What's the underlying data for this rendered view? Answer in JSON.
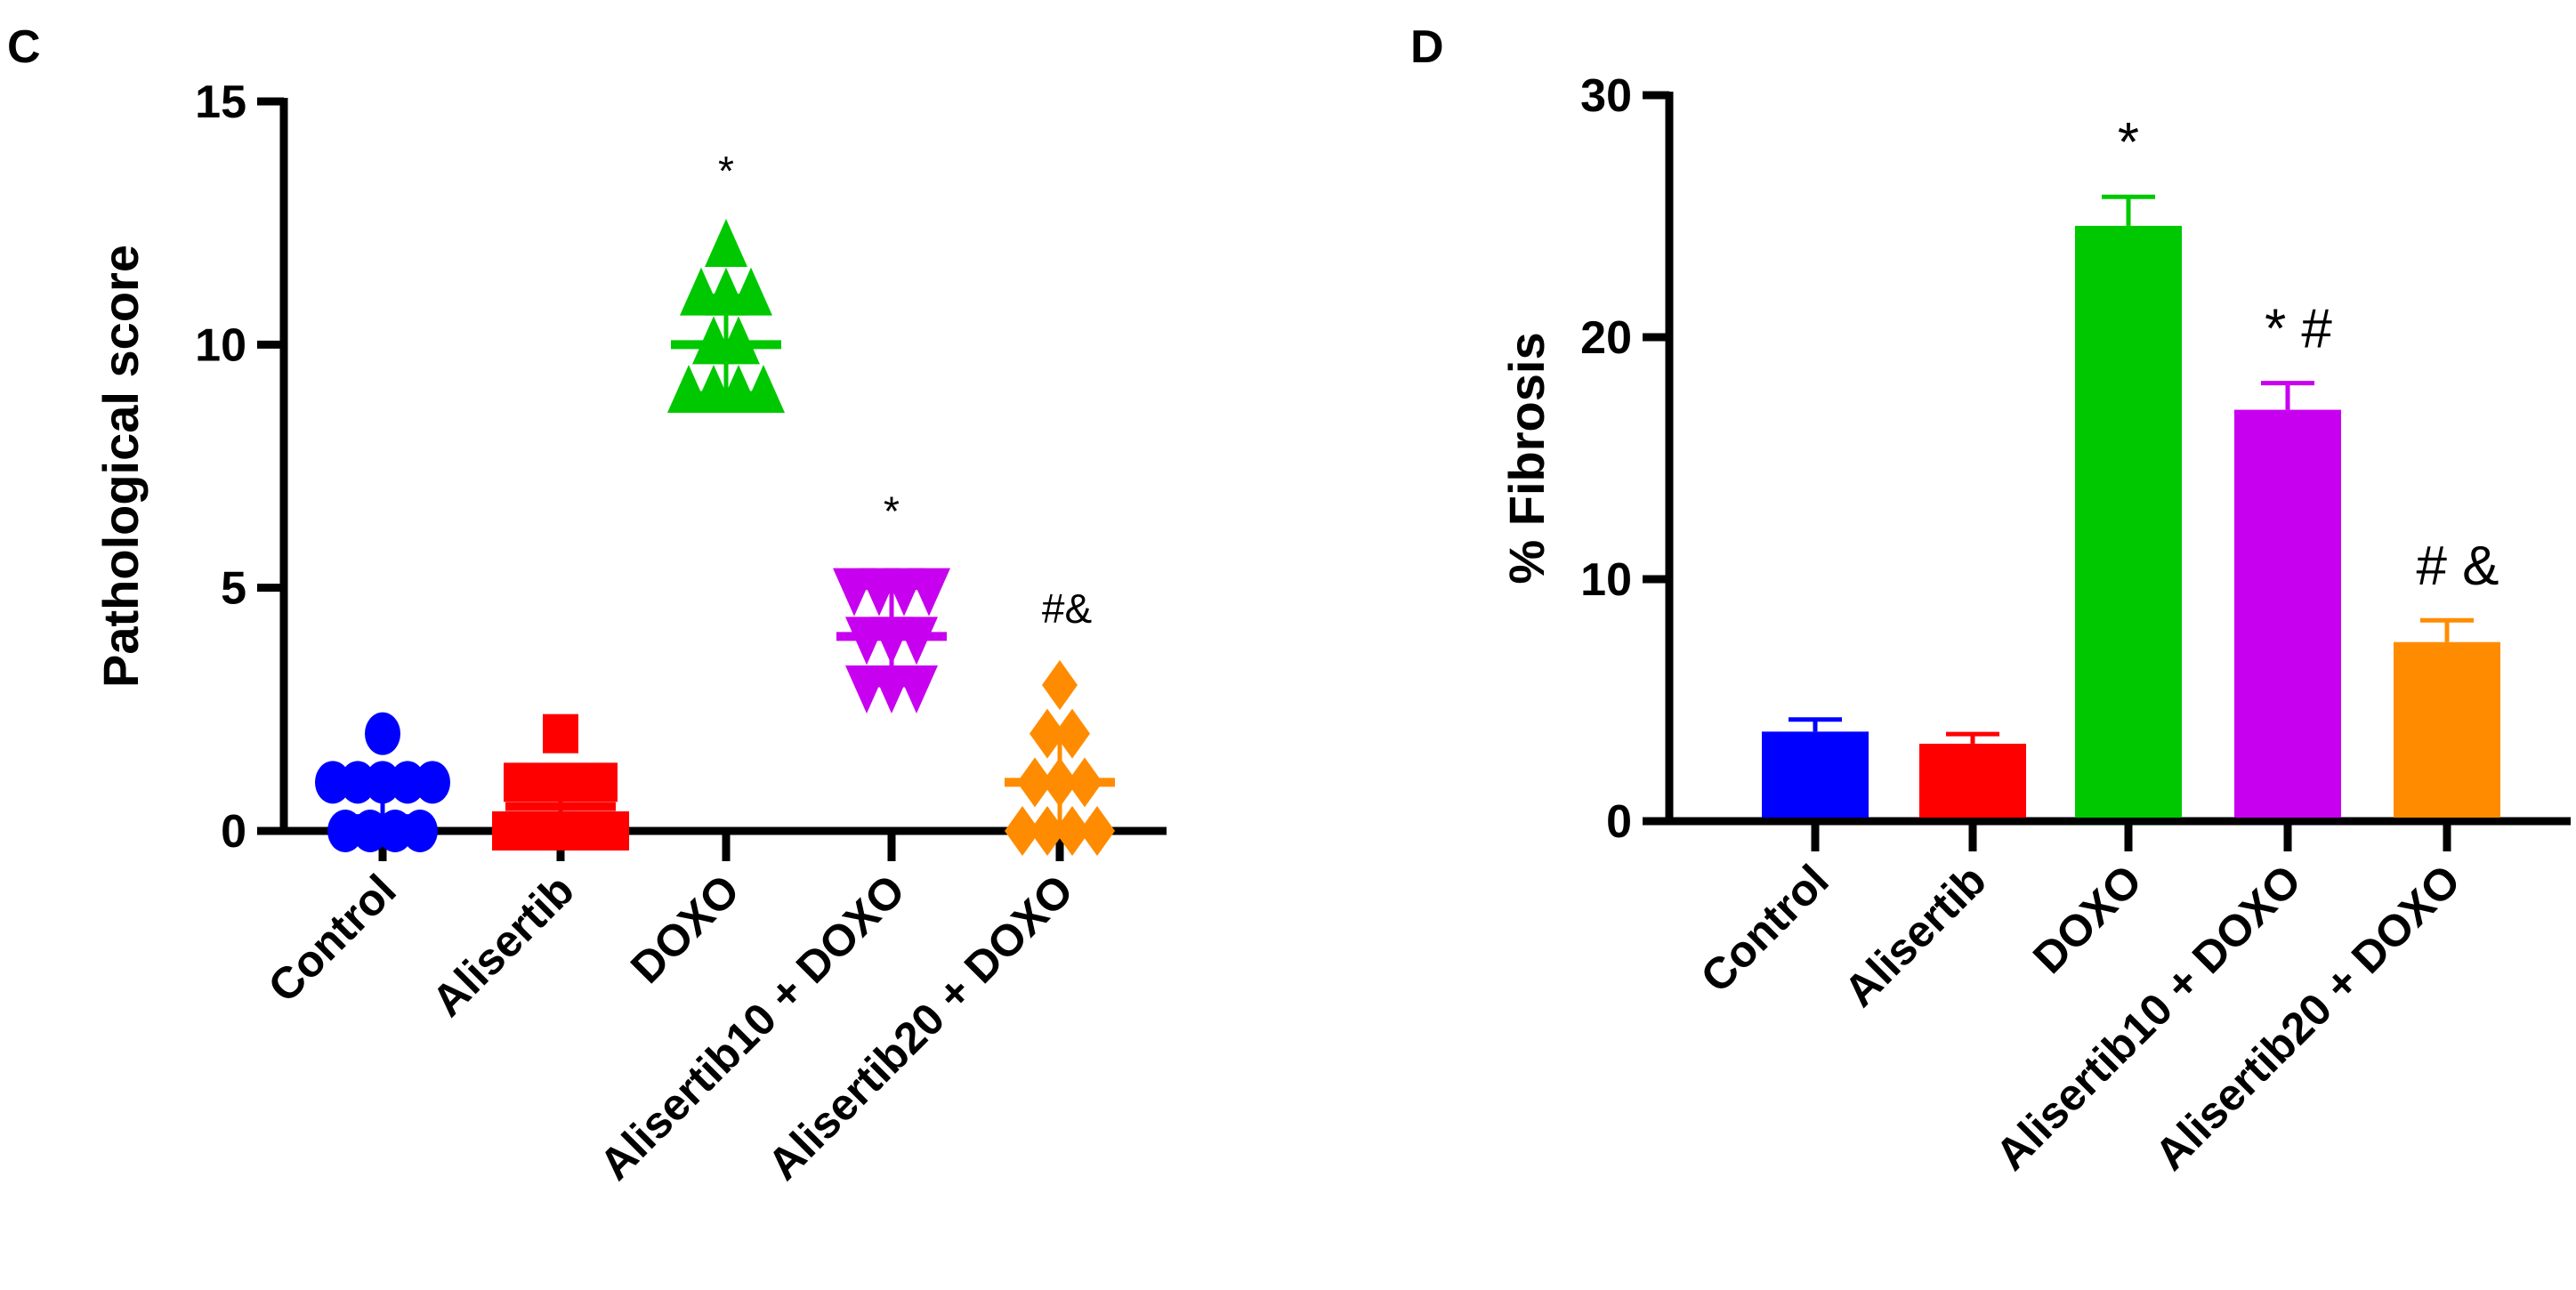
{
  "chart_data": [
    {
      "type": "scatter",
      "panel_label": "C",
      "title": "",
      "xlabel": "",
      "ylabel": "Pathological score",
      "ylim": [
        0,
        15
      ],
      "yticks": [
        "0",
        "5",
        "10",
        "15"
      ],
      "grid": false,
      "categories": [
        "Control",
        "Alisertib",
        "DOXO",
        "Alisertib10 + DOXO",
        "Alisertib20 + DOXO"
      ],
      "colors": [
        "#0000ff",
        "#ff0000",
        "#00c800",
        "#c800f0",
        "#ff8c00"
      ],
      "markers": [
        "circle",
        "square",
        "triangle-up",
        "triangle-down",
        "diamond"
      ],
      "series": [
        {
          "name": "Control",
          "values": [
            2,
            1,
            1,
            1,
            1,
            1,
            0,
            0,
            0,
            0
          ],
          "center": 1,
          "whisker": [
            0.3,
            1.0
          ],
          "annotation": ""
        },
        {
          "name": "Alisertib",
          "values": [
            2,
            1,
            1,
            1,
            1,
            0,
            0,
            0,
            0,
            0
          ],
          "center": 0.5,
          "whisker": [
            0.3,
            0.7
          ],
          "annotation": ""
        },
        {
          "name": "DOXO",
          "values": [
            12,
            11,
            11,
            11,
            10,
            10,
            9,
            9,
            9,
            9
          ],
          "center": 10,
          "whisker": [
            9,
            11
          ],
          "annotation": "*"
        },
        {
          "name": "Alisertib10 + DOXO",
          "values": [
            5,
            5,
            5,
            5,
            4,
            4,
            4,
            3,
            3,
            3
          ],
          "center": 4,
          "whisker": [
            3,
            5
          ],
          "annotation": "*"
        },
        {
          "name": "Alisertib20 + DOXO",
          "values": [
            3,
            2,
            2,
            1,
            1,
            1,
            0,
            0,
            0,
            0
          ],
          "center": 1,
          "whisker": [
            0,
            2
          ],
          "annotation": "#&"
        }
      ]
    },
    {
      "type": "bar",
      "panel_label": "D",
      "title": "",
      "xlabel": "",
      "ylabel": "% Fibrosis",
      "ylim": [
        0,
        30
      ],
      "yticks": [
        "0",
        "10",
        "20",
        "30"
      ],
      "grid": false,
      "categories": [
        "Control",
        "Alisertib",
        "DOXO",
        "Alisertib10 + DOXO",
        "Alisertib20 + DOXO"
      ],
      "colors": [
        "#0000ff",
        "#ff0000",
        "#00c800",
        "#c800f0",
        "#ff8c00"
      ],
      "values": [
        3.7,
        3.2,
        24.6,
        17.0,
        7.4
      ],
      "errors": [
        0.5,
        0.4,
        1.2,
        1.1,
        0.9
      ],
      "annotations": [
        "",
        "",
        "*",
        "* #",
        "# &"
      ]
    }
  ]
}
